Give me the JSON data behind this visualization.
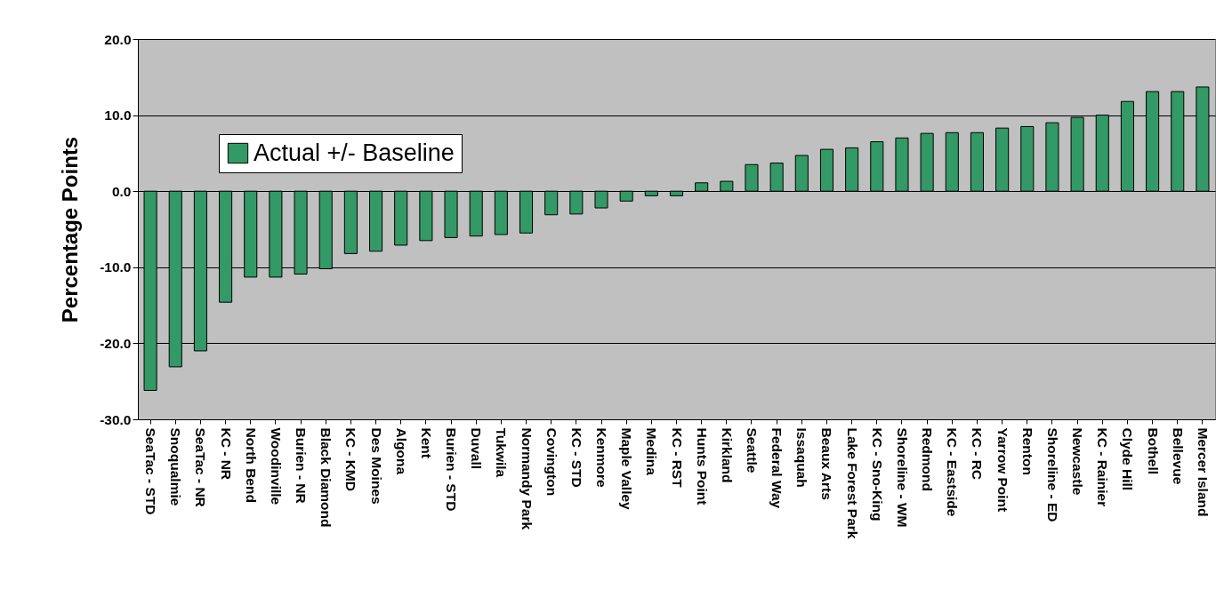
{
  "chart_data": {
    "type": "bar",
    "ylabel": "Percentage Points",
    "categories": [
      "SeaTac - STD",
      "Snoqualmie",
      "SeaTac - NR",
      "KC - NR",
      "North Bend",
      "Woodinville",
      "Burien - NR",
      "Black Diamond",
      "KC - KMD",
      "Des Moines",
      "Algona",
      "Kent",
      "Burien - STD",
      "Duvall",
      "Tukwila",
      "Normandy Park",
      "Covington",
      "KC - STD",
      "Kenmore",
      "Maple Valley",
      "Medina",
      "KC - RST",
      "Hunts Point",
      "Kirkland",
      "Seattle",
      "Federal Way",
      "Issaquah",
      "Beaux Arts",
      "Lake Forest Park",
      "KC - Sno-King",
      "Shoreline - WM",
      "Redmond",
      "KC - Eastside",
      "KC - RC",
      "Yarrow Point",
      "Renton",
      "Shoreline - ED",
      "Newcastle",
      "KC - Rainier",
      "Clyde Hill",
      "Bothell",
      "Bellevue",
      "Mercer Island"
    ],
    "series": [
      {
        "name": "Actual +/- Baseline",
        "color": "#339966",
        "values": [
          -26.2,
          -23.1,
          -21.0,
          -14.6,
          -11.3,
          -11.3,
          -10.9,
          -10.2,
          -8.2,
          -7.9,
          -7.1,
          -6.5,
          -6.1,
          -5.9,
          -5.7,
          -5.5,
          -3.1,
          -3.0,
          -2.2,
          -1.3,
          -0.6,
          -0.6,
          1.1,
          1.3,
          3.5,
          3.7,
          4.7,
          5.5,
          5.7,
          6.5,
          7.0,
          7.6,
          7.7,
          7.7,
          8.3,
          8.5,
          9.0,
          9.7,
          10.0,
          11.8,
          13.1,
          13.1,
          13.7
        ]
      }
    ],
    "ylim": [
      -30,
      20
    ],
    "yticks": [
      {
        "value": -30,
        "label": "-30.0"
      },
      {
        "value": -20,
        "label": "-20.0"
      },
      {
        "value": -10,
        "label": "-10.0"
      },
      {
        "value": 0,
        "label": "0.0"
      },
      {
        "value": 10,
        "label": "10.0"
      },
      {
        "value": 20,
        "label": "20.0"
      }
    ],
    "grid": "y",
    "legend": "top left"
  }
}
